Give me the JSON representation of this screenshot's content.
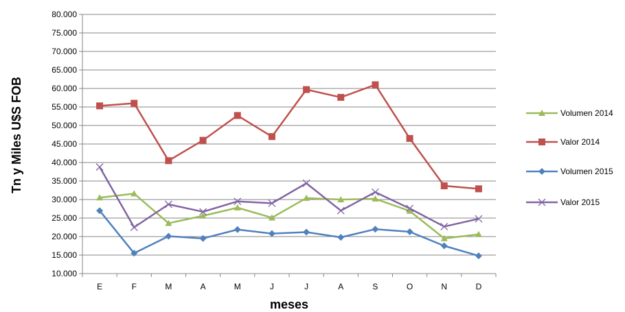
{
  "chart_data": {
    "type": "line",
    "title": "",
    "xlabel": "meses",
    "ylabel": "Tn y Miles U$S FOB",
    "categories": [
      "E",
      "F",
      "M",
      "A",
      "M",
      "J",
      "J",
      "A",
      "S",
      "O",
      "N",
      "D"
    ],
    "ylim": [
      10000,
      80000
    ],
    "yticks": [
      10000,
      15000,
      20000,
      25000,
      30000,
      35000,
      40000,
      45000,
      50000,
      55000,
      60000,
      65000,
      70000,
      75000,
      80000
    ],
    "ytick_labels": [
      "10.000",
      "15.000",
      "20.000",
      "25.000",
      "30.000",
      "35.000",
      "40.000",
      "45.000",
      "50.000",
      "55.000",
      "60.000",
      "65.000",
      "70.000",
      "75.000",
      "80.000"
    ],
    "grid": true,
    "legend_position": "right",
    "series": [
      {
        "name": "Volumen 2014",
        "color": "#9bbb59",
        "marker": "triangle",
        "values": [
          30500,
          31600,
          23600,
          25600,
          27800,
          25100,
          30400,
          30000,
          30200,
          26900,
          19500,
          20600
        ]
      },
      {
        "name": "Valor 2014",
        "color": "#c0504d",
        "marker": "square",
        "values": [
          55300,
          56000,
          40500,
          46000,
          52700,
          47000,
          59700,
          57600,
          61000,
          46500,
          33700,
          32900
        ]
      },
      {
        "name": "Volumen 2015",
        "color": "#4f81bd",
        "marker": "diamond",
        "values": [
          27000,
          15500,
          20100,
          19500,
          21900,
          20800,
          21200,
          19800,
          22000,
          21300,
          17500,
          14800
        ]
      },
      {
        "name": "Valor 2015",
        "color": "#8064a2",
        "marker": "x",
        "values": [
          38800,
          22500,
          28700,
          26700,
          29500,
          29000,
          34400,
          27000,
          32000,
          27600,
          22700,
          24800
        ]
      }
    ]
  }
}
